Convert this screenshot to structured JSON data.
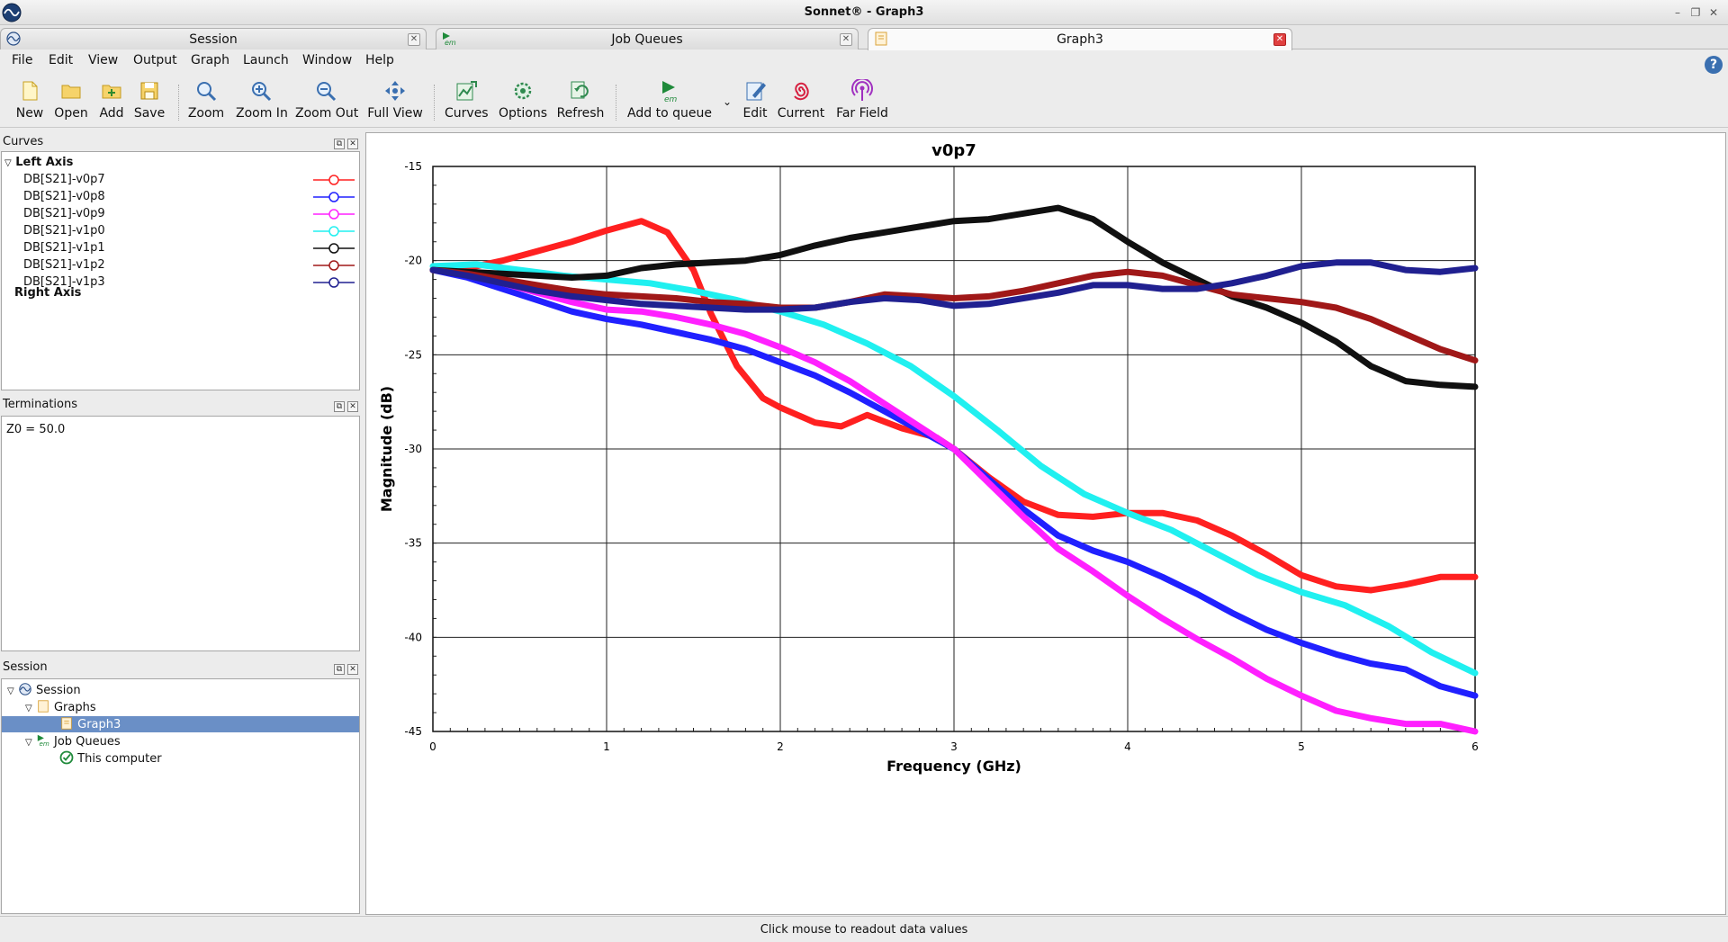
{
  "window": {
    "title": "Sonnet® - Graph3"
  },
  "tabs": [
    {
      "label": "Session"
    },
    {
      "label": "Job Queues"
    },
    {
      "label": "Graph3"
    }
  ],
  "menu": [
    "File",
    "Edit",
    "View",
    "Output",
    "Graph",
    "Launch",
    "Window",
    "Help"
  ],
  "toolbar": {
    "new": "New",
    "open": "Open",
    "add": "Add",
    "save": "Save",
    "zoom": "Zoom",
    "zoom_in": "Zoom In",
    "zoom_out": "Zoom Out",
    "full_view": "Full View",
    "curves": "Curves",
    "options": "Options",
    "refresh": "Refresh",
    "add_to_queue": "Add to queue",
    "edit": "Edit",
    "current": "Current",
    "far_field": "Far Field"
  },
  "curves_panel": {
    "title": "Curves",
    "left_axis": "Left Axis",
    "right_axis": "Right Axis",
    "items": [
      {
        "label": "DB[S21]-v0p7",
        "color": "#ff2020"
      },
      {
        "label": "DB[S21]-v0p8",
        "color": "#2020ff"
      },
      {
        "label": "DB[S21]-v0p9",
        "color": "#ff20ff"
      },
      {
        "label": "DB[S21]-v1p0",
        "color": "#20f0f0"
      },
      {
        "label": "DB[S21]-v1p1",
        "color": "#101010"
      },
      {
        "label": "DB[S21]-v1p2",
        "color": "#a01818"
      },
      {
        "label": "DB[S21]-v1p3",
        "color": "#202090"
      }
    ]
  },
  "terminations_panel": {
    "title": "Terminations",
    "text": "Z0 = 50.0"
  },
  "session_panel": {
    "title": "Session",
    "items": {
      "session": "Session",
      "graphs": "Graphs",
      "graph3": "Graph3",
      "job_queues": "Job Queues",
      "this_computer": "This computer"
    }
  },
  "status": "Click mouse to readout data values",
  "chart_data": {
    "type": "line",
    "title": "v0p7",
    "xlabel": "Frequency (GHz)",
    "ylabel": "Magnitude (dB)",
    "xlim": [
      0,
      6
    ],
    "ylim": [
      -45,
      -15
    ],
    "xticks": [
      0,
      1,
      2,
      3,
      4,
      5,
      6
    ],
    "yticks": [
      -15,
      -20,
      -25,
      -30,
      -35,
      -40,
      -45
    ],
    "grid": true,
    "series": [
      {
        "name": "DB[S21]-v0p7",
        "color": "#ff2020",
        "x": [
          0,
          0.2,
          0.4,
          0.6,
          0.8,
          1.0,
          1.2,
          1.35,
          1.5,
          1.6,
          1.75,
          1.9,
          2.0,
          2.2,
          2.35,
          2.5,
          2.7,
          2.9,
          3.0,
          3.2,
          3.4,
          3.6,
          3.8,
          4.0,
          4.2,
          4.4,
          4.6,
          4.8,
          5.0,
          5.2,
          5.4,
          5.6,
          5.8,
          6.0
        ],
        "y": [
          -20.5,
          -20.4,
          -20.0,
          -19.5,
          -19.0,
          -18.4,
          -17.9,
          -18.5,
          -20.5,
          -22.8,
          -25.6,
          -27.3,
          -27.8,
          -28.6,
          -28.8,
          -28.2,
          -28.9,
          -29.4,
          -30.0,
          -31.5,
          -32.8,
          -33.5,
          -33.6,
          -33.4,
          -33.4,
          -33.8,
          -34.6,
          -35.6,
          -36.7,
          -37.3,
          -37.5,
          -37.2,
          -36.8,
          -36.8
        ]
      },
      {
        "name": "DB[S21]-v0p8",
        "color": "#2020ff",
        "x": [
          0,
          0.2,
          0.4,
          0.6,
          0.8,
          1.0,
          1.2,
          1.4,
          1.6,
          1.8,
          2.0,
          2.2,
          2.4,
          2.6,
          2.8,
          3.0,
          3.2,
          3.4,
          3.6,
          3.8,
          4.0,
          4.2,
          4.4,
          4.6,
          4.8,
          5.0,
          5.2,
          5.4,
          5.6,
          5.8,
          6.0
        ],
        "y": [
          -20.5,
          -20.9,
          -21.5,
          -22.1,
          -22.7,
          -23.1,
          -23.4,
          -23.8,
          -24.2,
          -24.7,
          -25.4,
          -26.1,
          -27.0,
          -28.0,
          -29.0,
          -30.0,
          -31.6,
          -33.2,
          -34.6,
          -35.4,
          -36.0,
          -36.8,
          -37.7,
          -38.7,
          -39.6,
          -40.3,
          -40.9,
          -41.4,
          -41.7,
          -42.6,
          -43.1
        ]
      },
      {
        "name": "DB[S21]-v0p9",
        "color": "#ff20ff",
        "x": [
          0,
          0.2,
          0.4,
          0.6,
          0.8,
          1.0,
          1.2,
          1.4,
          1.6,
          1.8,
          2.0,
          2.2,
          2.4,
          2.6,
          2.8,
          3.0,
          3.2,
          3.4,
          3.6,
          3.8,
          4.0,
          4.2,
          4.4,
          4.6,
          4.8,
          5.0,
          5.2,
          5.4,
          5.6,
          5.8,
          6.0
        ],
        "y": [
          -20.5,
          -20.7,
          -21.2,
          -21.7,
          -22.2,
          -22.6,
          -22.7,
          -23.0,
          -23.4,
          -23.9,
          -24.6,
          -25.4,
          -26.4,
          -27.6,
          -28.8,
          -30.0,
          -31.8,
          -33.6,
          -35.3,
          -36.5,
          -37.8,
          -39.0,
          -40.1,
          -41.1,
          -42.2,
          -43.1,
          -43.9,
          -44.3,
          -44.6,
          -44.6,
          -45.0
        ]
      },
      {
        "name": "DB[S21]-v1p0",
        "color": "#20f0f0",
        "x": [
          0,
          0.25,
          0.5,
          0.75,
          1.0,
          1.25,
          1.5,
          1.75,
          2.0,
          2.25,
          2.5,
          2.75,
          3.0,
          3.25,
          3.5,
          3.75,
          4.0,
          4.25,
          4.5,
          4.75,
          5.0,
          5.25,
          5.5,
          5.75,
          6.0
        ],
        "y": [
          -20.3,
          -20.2,
          -20.5,
          -20.8,
          -21.0,
          -21.2,
          -21.6,
          -22.1,
          -22.7,
          -23.4,
          -24.4,
          -25.6,
          -27.2,
          -29.0,
          -30.9,
          -32.4,
          -33.4,
          -34.3,
          -35.5,
          -36.7,
          -37.6,
          -38.3,
          -39.4,
          -40.8,
          -41.9
        ]
      },
      {
        "name": "DB[S21]-v1p1",
        "color": "#101010",
        "x": [
          0,
          0.2,
          0.4,
          0.6,
          0.8,
          1.0,
          1.2,
          1.4,
          1.6,
          1.8,
          2.0,
          2.2,
          2.4,
          2.6,
          2.8,
          3.0,
          3.2,
          3.4,
          3.6,
          3.8,
          4.0,
          4.2,
          4.4,
          4.6,
          4.8,
          5.0,
          5.2,
          5.4,
          5.6,
          5.8,
          6.0
        ],
        "y": [
          -20.5,
          -20.6,
          -20.7,
          -20.8,
          -20.9,
          -20.8,
          -20.4,
          -20.2,
          -20.1,
          -20.0,
          -19.7,
          -19.2,
          -18.8,
          -18.5,
          -18.2,
          -17.9,
          -17.8,
          -17.5,
          -17.2,
          -17.8,
          -19.0,
          -20.1,
          -21.0,
          -21.9,
          -22.5,
          -23.3,
          -24.3,
          -25.6,
          -26.4,
          -26.6,
          -26.7
        ]
      },
      {
        "name": "DB[S21]-v1p2",
        "color": "#a01818",
        "x": [
          0,
          0.2,
          0.4,
          0.6,
          0.8,
          1.0,
          1.2,
          1.4,
          1.6,
          1.8,
          2.0,
          2.2,
          2.4,
          2.6,
          2.8,
          3.0,
          3.2,
          3.4,
          3.6,
          3.8,
          4.0,
          4.2,
          4.4,
          4.6,
          4.8,
          5.0,
          5.2,
          5.4,
          5.6,
          5.8,
          6.0
        ],
        "y": [
          -20.5,
          -20.7,
          -21.0,
          -21.3,
          -21.6,
          -21.8,
          -21.9,
          -22.0,
          -22.2,
          -22.3,
          -22.5,
          -22.5,
          -22.2,
          -21.8,
          -21.9,
          -22.0,
          -21.9,
          -21.6,
          -21.2,
          -20.8,
          -20.6,
          -20.8,
          -21.3,
          -21.8,
          -22.0,
          -22.2,
          -22.5,
          -23.1,
          -23.9,
          -24.7,
          -25.3
        ]
      },
      {
        "name": "DB[S21]-v1p3",
        "color": "#202090",
        "x": [
          0,
          0.2,
          0.4,
          0.6,
          0.8,
          1.0,
          1.2,
          1.4,
          1.6,
          1.8,
          2.0,
          2.2,
          2.4,
          2.6,
          2.8,
          3.0,
          3.2,
          3.4,
          3.6,
          3.8,
          4.0,
          4.2,
          4.4,
          4.6,
          4.8,
          5.0,
          5.2,
          5.4,
          5.6,
          5.8,
          6.0
        ],
        "y": [
          -20.5,
          -20.8,
          -21.2,
          -21.6,
          -21.9,
          -22.1,
          -22.3,
          -22.4,
          -22.5,
          -22.6,
          -22.6,
          -22.5,
          -22.2,
          -22.0,
          -22.1,
          -22.4,
          -22.3,
          -22.0,
          -21.7,
          -21.3,
          -21.3,
          -21.5,
          -21.5,
          -21.2,
          -20.8,
          -20.3,
          -20.1,
          -20.1,
          -20.5,
          -20.6,
          -20.4
        ]
      }
    ]
  }
}
